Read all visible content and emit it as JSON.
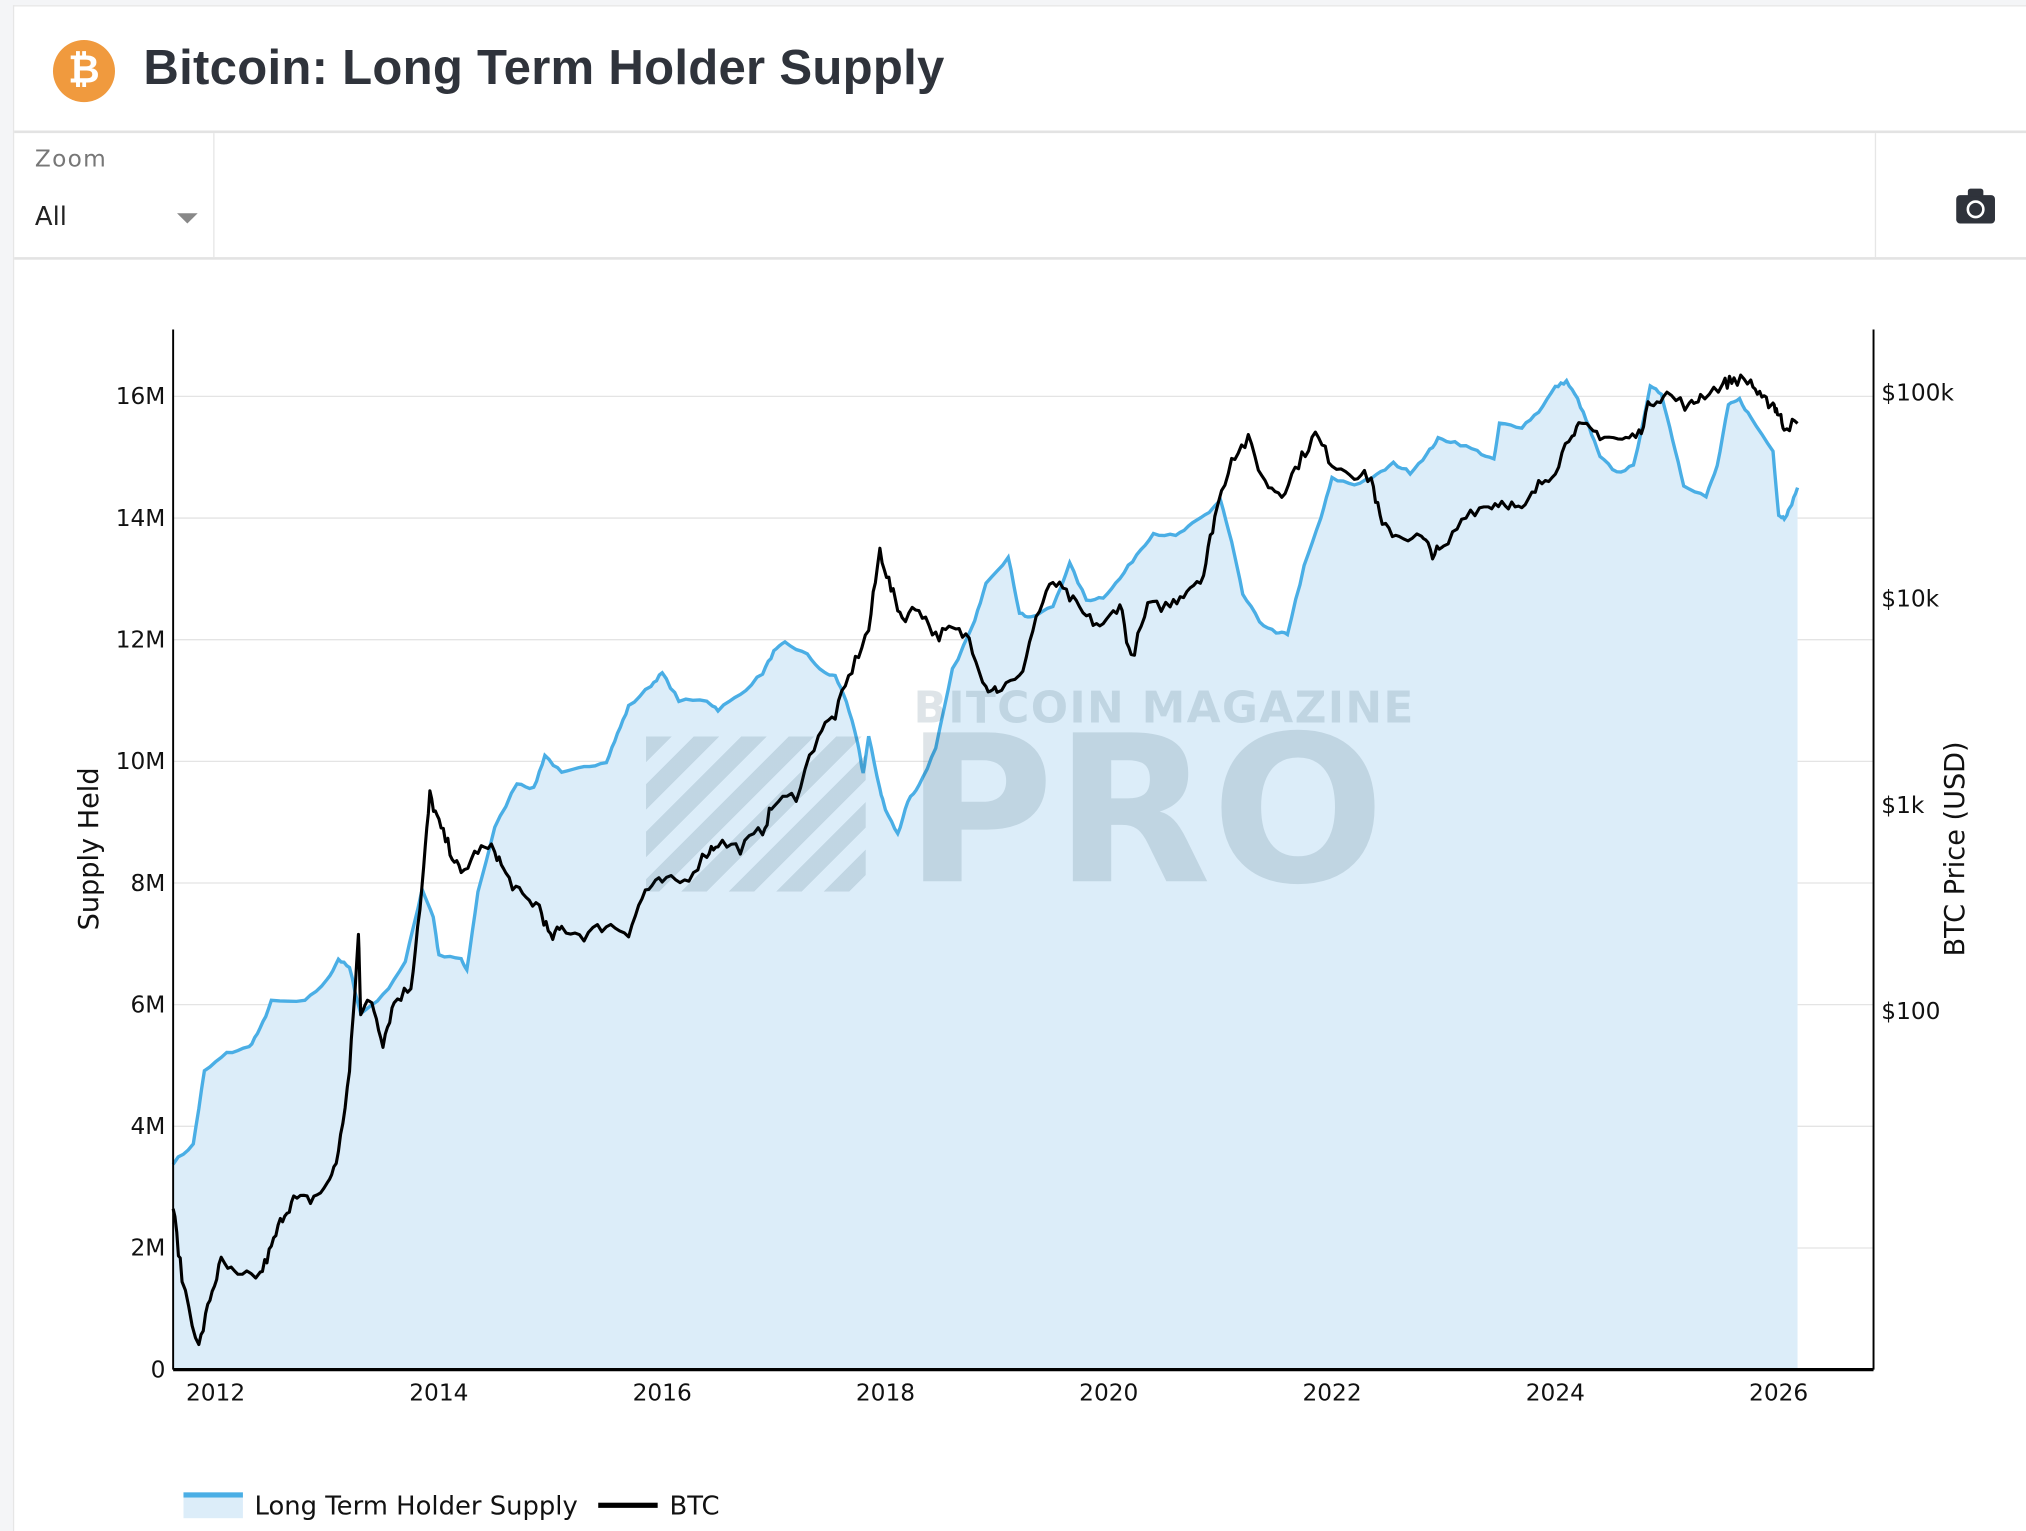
{
  "header": {
    "title": "Bitcoin: Long Term Holder Supply",
    "logo_icon": "bitcoin-logo-icon",
    "logo_color": "#f09a3e"
  },
  "toolbar": {
    "zoom_label": "Zoom",
    "zoom_value": "All",
    "camera_icon": "camera-icon"
  },
  "watermark": {
    "line1": "BITCOIN MAGAZINE",
    "line2": "PRO"
  },
  "chart_data": {
    "type": "line",
    "title": "",
    "xlabel": "",
    "ylabel": "Supply Held",
    "y2label": "BTC Price (USD)",
    "x_ticks": [
      "2012",
      "2014",
      "2016",
      "2018",
      "2020",
      "2022",
      "2024",
      "2026"
    ],
    "x_range": [
      2011.62,
      2026.85
    ],
    "y_ticks": [
      "0",
      "2M",
      "4M",
      "6M",
      "8M",
      "10M",
      "12M",
      "14M",
      "16M"
    ],
    "ylim_millions": [
      0,
      17.1
    ],
    "y2_scale": "log",
    "y2_ticks": [
      "$100",
      "$1k",
      "$10k",
      "$100k"
    ],
    "y2_tick_values": [
      100,
      1000,
      10000,
      100000
    ],
    "y2lim": [
      1.8,
      200000
    ],
    "grid": "horizontal",
    "legend_placement": "bottom-left",
    "series": [
      {
        "name": "Long Term Holder Supply",
        "axis": "left",
        "style": "area",
        "color": "#4aaee5",
        "fill": "#dcedf9",
        "unit": "M BTC",
        "x": [
          2011.62,
          2011.8,
          2011.9,
          2012.1,
          2012.3,
          2012.4,
          2012.5,
          2012.8,
          2013.0,
          2013.1,
          2013.2,
          2013.3,
          2013.5,
          2013.7,
          2013.85,
          2013.95,
          2014.0,
          2014.2,
          2014.25,
          2014.35,
          2014.5,
          2014.7,
          2014.85,
          2014.95,
          2015.1,
          2015.3,
          2015.5,
          2015.6,
          2015.7,
          2015.9,
          2016.0,
          2016.15,
          2016.4,
          2016.5,
          2016.7,
          2016.9,
          2017.0,
          2017.1,
          2017.3,
          2017.45,
          2017.55,
          2017.65,
          2017.75,
          2017.8,
          2017.85,
          2017.95,
          2018.0,
          2018.11,
          2018.2,
          2018.3,
          2018.45,
          2018.6,
          2018.8,
          2018.9,
          2019.1,
          2019.2,
          2019.3,
          2019.5,
          2019.65,
          2019.8,
          2019.95,
          2020.1,
          2020.25,
          2020.4,
          2020.6,
          2020.75,
          2020.9,
          2021.0,
          2021.1,
          2021.2,
          2021.35,
          2021.5,
          2021.6,
          2021.75,
          2021.9,
          2022.0,
          2022.2,
          2022.4,
          2022.55,
          2022.7,
          2022.85,
          2022.95,
          2023.1,
          2023.3,
          2023.45,
          2023.5,
          2023.7,
          2023.85,
          2024.0,
          2024.1,
          2024.2,
          2024.3,
          2024.4,
          2024.55,
          2024.7,
          2024.85,
          2024.95,
          2025.05,
          2025.15,
          2025.35,
          2025.45,
          2025.55,
          2025.65,
          2025.75,
          2025.95,
          2026.0,
          2026.05,
          2026.1,
          2026.17
        ],
        "values": [
          3.4,
          3.7,
          4.9,
          5.2,
          5.3,
          5.6,
          6.05,
          6.05,
          6.4,
          6.75,
          6.6,
          5.85,
          6.15,
          6.7,
          7.9,
          7.45,
          6.8,
          6.75,
          6.55,
          7.85,
          8.9,
          9.65,
          9.55,
          10.1,
          9.8,
          9.9,
          10.0,
          10.45,
          10.9,
          11.25,
          11.45,
          11.0,
          11.0,
          10.85,
          11.1,
          11.45,
          11.8,
          11.95,
          11.75,
          11.45,
          11.4,
          11.0,
          10.3,
          9.8,
          10.4,
          9.55,
          9.2,
          8.8,
          9.35,
          9.6,
          10.2,
          11.5,
          12.3,
          12.95,
          13.35,
          12.45,
          12.35,
          12.55,
          13.25,
          12.65,
          12.7,
          13.0,
          13.4,
          13.75,
          13.7,
          13.9,
          14.1,
          14.3,
          13.6,
          12.75,
          12.3,
          12.1,
          12.1,
          13.2,
          14.0,
          14.65,
          14.55,
          14.7,
          14.9,
          14.75,
          15.05,
          15.3,
          15.25,
          15.1,
          14.95,
          15.55,
          15.5,
          15.75,
          16.15,
          16.25,
          15.95,
          15.5,
          15.0,
          14.75,
          14.85,
          16.15,
          16.05,
          15.3,
          14.55,
          14.35,
          14.85,
          15.85,
          15.95,
          15.65,
          15.1,
          14.05,
          14.0,
          14.15,
          14.5
        ]
      },
      {
        "name": "BTC",
        "axis": "right",
        "style": "line",
        "color": "#000000",
        "unit": "USD",
        "x": [
          2011.62,
          2011.7,
          2011.85,
          2011.95,
          2012.05,
          2012.2,
          2012.4,
          2012.5,
          2012.6,
          2012.7,
          2012.85,
          2013.0,
          2013.1,
          2013.2,
          2013.28,
          2013.3,
          2013.4,
          2013.5,
          2013.6,
          2013.75,
          2013.85,
          2013.92,
          2014.0,
          2014.1,
          2014.2,
          2014.35,
          2014.5,
          2014.6,
          2014.75,
          2014.9,
          2015.0,
          2015.1,
          2015.3,
          2015.5,
          2015.7,
          2015.85,
          2016.0,
          2016.2,
          2016.4,
          2016.5,
          2016.7,
          2016.9,
          2017.0,
          2017.2,
          2017.4,
          2017.55,
          2017.7,
          2017.85,
          2017.95,
          2018.05,
          2018.15,
          2018.3,
          2018.45,
          2018.6,
          2018.75,
          2018.9,
          2019.0,
          2019.2,
          2019.35,
          2019.5,
          2019.65,
          2019.8,
          2019.95,
          2020.1,
          2020.2,
          2020.35,
          2020.55,
          2020.7,
          2020.85,
          2020.95,
          2021.1,
          2021.25,
          2021.4,
          2021.55,
          2021.7,
          2021.85,
          2022.0,
          2022.2,
          2022.35,
          2022.45,
          2022.6,
          2022.8,
          2022.9,
          2023.0,
          2023.2,
          2023.4,
          2023.55,
          2023.7,
          2023.85,
          2024.0,
          2024.15,
          2024.25,
          2024.4,
          2024.6,
          2024.75,
          2024.85,
          2025.0,
          2025.2,
          2025.3,
          2025.5,
          2025.6,
          2025.75,
          2025.85,
          2025.95,
          2026.0,
          2026.05,
          2026.17
        ],
        "values": [
          11,
          5,
          2.3,
          4,
          6,
          5,
          5.2,
          7,
          10,
          12,
          12,
          14,
          20,
          50,
          230,
          100,
          110,
          70,
          110,
          130,
          400,
          1100,
          800,
          600,
          450,
          600,
          600,
          450,
          350,
          320,
          220,
          250,
          230,
          260,
          240,
          380,
          420,
          420,
          580,
          650,
          610,
          750,
          1000,
          1100,
          2200,
          2700,
          4500,
          7000,
          17000,
          11000,
          8000,
          9000,
          6500,
          7000,
          6400,
          3700,
          3600,
          4000,
          8000,
          12000,
          10000,
          8000,
          7200,
          9500,
          5000,
          9000,
          9200,
          11000,
          13000,
          25000,
          48000,
          58000,
          36000,
          32000,
          45000,
          62000,
          45000,
          40000,
          38000,
          22000,
          20000,
          19500,
          16500,
          17000,
          26000,
          28000,
          29500,
          26000,
          35000,
          42000,
          65000,
          67000,
          62000,
          58000,
          62000,
          90000,
          97000,
          84000,
          95000,
          108000,
          115000,
          112000,
          90000,
          88000,
          78000,
          68000,
          70000
        ]
      }
    ]
  }
}
